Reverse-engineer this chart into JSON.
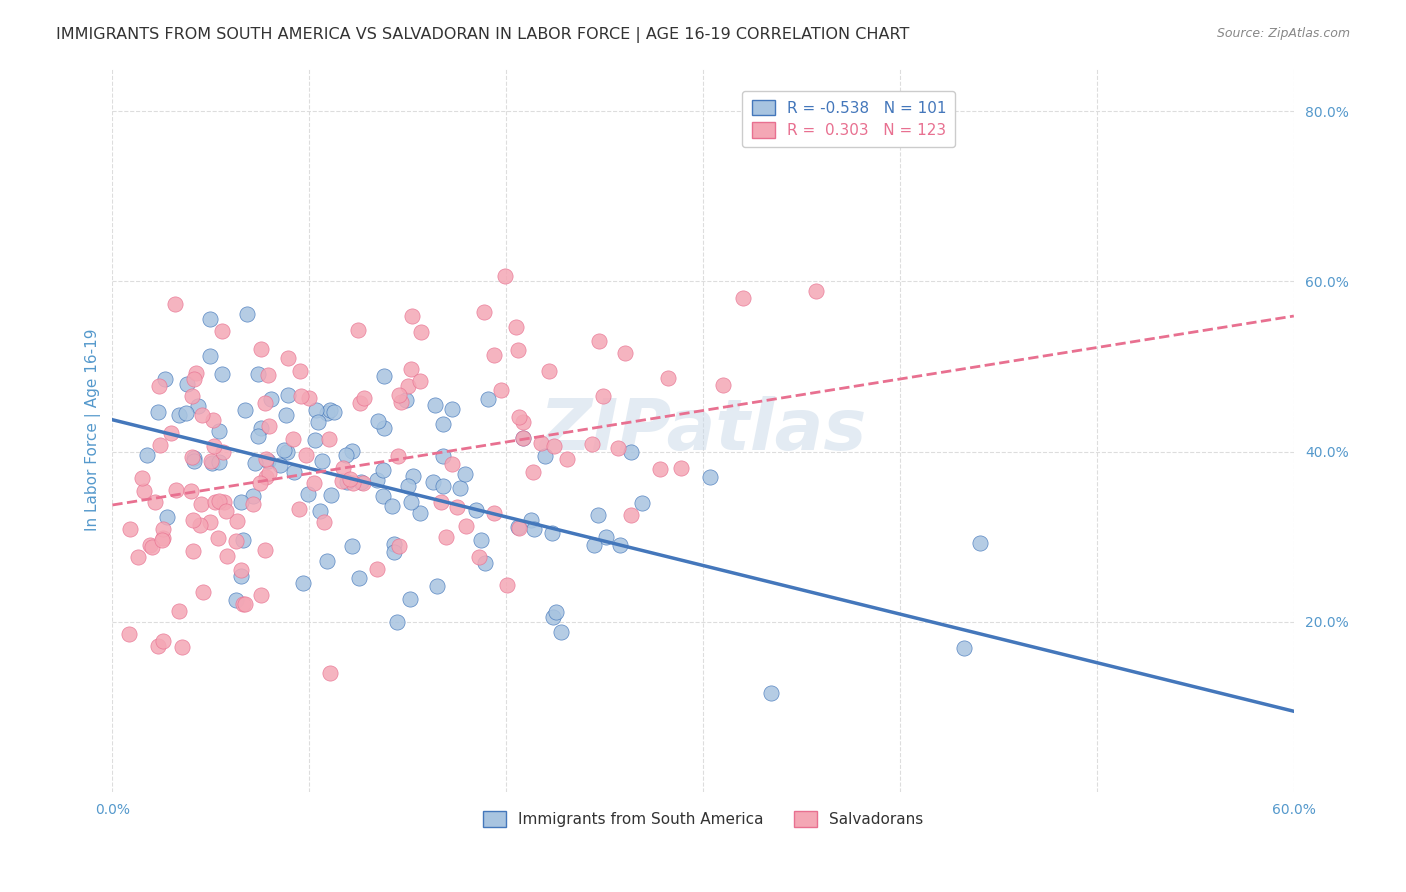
{
  "title": "IMMIGRANTS FROM SOUTH AMERICA VS SALVADORAN IN LABOR FORCE | AGE 16-19 CORRELATION CHART",
  "source": "Source: ZipAtlas.com",
  "xlabel_bottom": "",
  "ylabel": "In Labor Force | Age 16-19",
  "xlim": [
    0.0,
    0.6
  ],
  "ylim": [
    0.0,
    0.85
  ],
  "x_ticks": [
    0.0,
    0.1,
    0.2,
    0.3,
    0.4,
    0.5,
    0.6
  ],
  "x_tick_labels": [
    "0.0%",
    "",
    "",
    "",
    "",
    "",
    "60.0%"
  ],
  "y_ticks_right": [
    0.2,
    0.4,
    0.6,
    0.8
  ],
  "y_tick_labels_right": [
    "20.0%",
    "40.0%",
    "60.0%",
    "80.0%"
  ],
  "legend_blue_label": "R = -0.538   N = 101",
  "legend_pink_label": "R =  0.303   N = 123",
  "legend_bottom_blue": "Immigrants from South America",
  "legend_bottom_pink": "Salvadorans",
  "r_blue": -0.538,
  "n_blue": 101,
  "r_pink": 0.303,
  "n_pink": 123,
  "scatter_blue_color": "#a8c4e0",
  "scatter_pink_color": "#f4a7b5",
  "line_blue_color": "#4477bb",
  "line_pink_color": "#e87090",
  "watermark_color": "#c8d8e8",
  "background_color": "#ffffff",
  "grid_color": "#dddddd",
  "title_color": "#333333",
  "source_color": "#888888",
  "axis_label_color": "#5599cc",
  "seed_blue": 42,
  "seed_pink": 99
}
